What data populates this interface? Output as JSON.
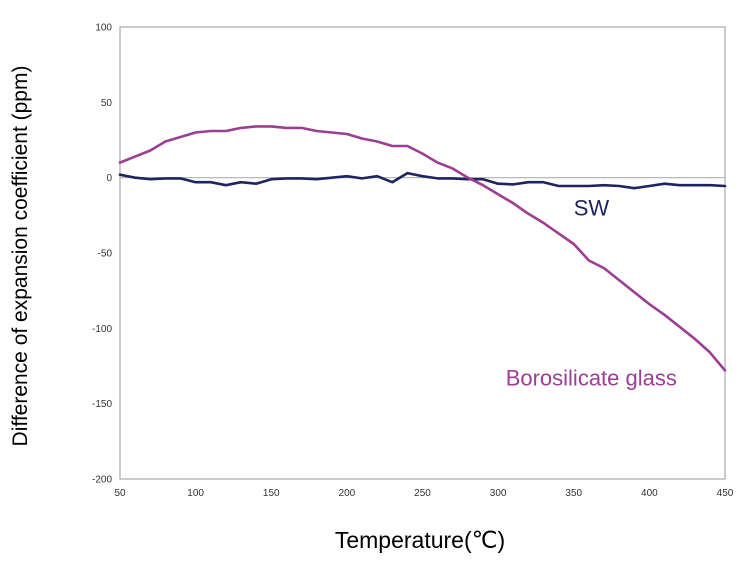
{
  "chart_data": {
    "type": "line",
    "xlabel": "Temperature(℃)",
    "ylabel": "Difference of expansion coefficient (ppm)",
    "xlim": [
      50,
      450
    ],
    "ylim": [
      -200,
      100
    ],
    "x_ticks": [
      "50",
      "100",
      "150",
      "200",
      "250",
      "300",
      "350",
      "400",
      "450"
    ],
    "y_ticks": [
      "100",
      "50",
      "0",
      "-50",
      "-100",
      "-150",
      "-200"
    ],
    "grid": false,
    "reference_line": 0,
    "series": [
      {
        "name": "SW",
        "color": "#1e2460",
        "label_at": [
          350,
          -25
        ],
        "x": [
          50,
          60,
          70,
          80,
          90,
          100,
          110,
          120,
          130,
          140,
          150,
          160,
          170,
          180,
          190,
          200,
          210,
          220,
          230,
          240,
          250,
          260,
          270,
          280,
          290,
          300,
          310,
          320,
          330,
          340,
          350,
          360,
          370,
          380,
          390,
          400,
          410,
          420,
          430,
          440,
          450
        ],
        "values": [
          2,
          0,
          -1,
          -0.5,
          -0.5,
          -3,
          -3,
          -5,
          -3,
          -4,
          -1,
          -0.5,
          -0.5,
          -1,
          0,
          1,
          -0.5,
          1,
          -3,
          3,
          1,
          -0.5,
          -0.5,
          -1,
          -1,
          -4,
          -4.5,
          -3,
          -3,
          -5.5,
          -5.5,
          -5.5,
          -5,
          -5.5,
          -7,
          -5.5,
          -4,
          -5,
          -5,
          -5,
          -5.5
        ]
      },
      {
        "name": "Borosilicate glass",
        "color": "#9b3e94",
        "label_at": [
          305,
          -138
        ],
        "x": [
          50,
          60,
          70,
          80,
          90,
          100,
          110,
          120,
          130,
          140,
          150,
          160,
          170,
          180,
          190,
          200,
          210,
          220,
          230,
          240,
          250,
          260,
          270,
          280,
          290,
          300,
          310,
          320,
          330,
          340,
          350,
          360,
          370,
          380,
          390,
          400,
          410,
          420,
          430,
          440,
          450
        ],
        "values": [
          10,
          14,
          18,
          24,
          27,
          30,
          31,
          31,
          33,
          34,
          34,
          33,
          33,
          31,
          30,
          29,
          26,
          24,
          21,
          21,
          16,
          10,
          6,
          0,
          -5,
          -11,
          -17,
          -24,
          -30,
          -37,
          -44,
          -55,
          -60,
          -68,
          -76,
          -84,
          -91,
          -99,
          -107,
          -116,
          -128
        ]
      }
    ]
  }
}
